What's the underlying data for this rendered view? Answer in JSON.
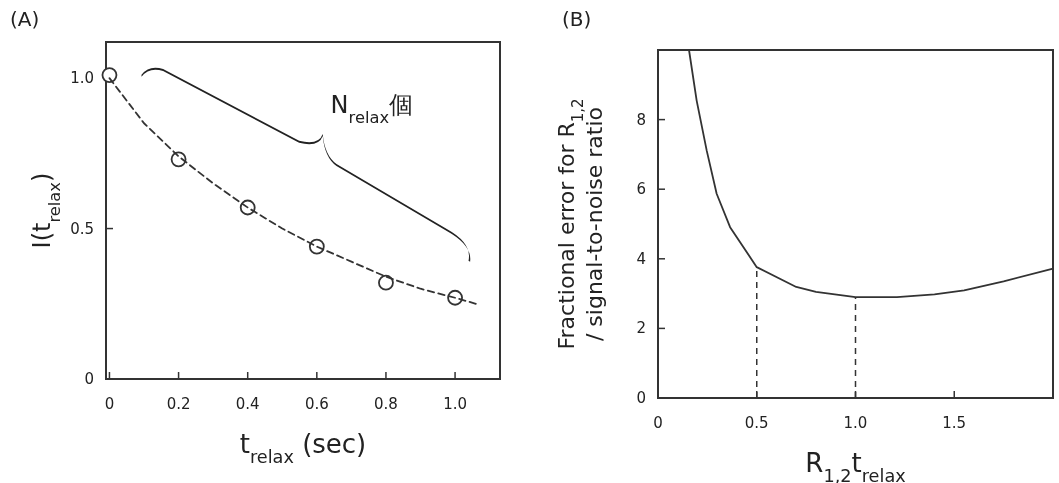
{
  "chart_data": [
    {
      "type": "scatter",
      "title": "(A)",
      "xlabel": "t$_{relax}$ (sec)",
      "ylabel": "I(t$_{relax}$)",
      "xlim": [
        -0.01,
        1.13
      ],
      "ylim": [
        0,
        1.12
      ],
      "xticks": [
        0,
        0.2,
        0.4,
        0.6,
        0.8,
        {
          "value": 1,
          "label": "1.0"
        }
      ],
      "yticks": [
        0,
        0.5,
        {
          "value": 1,
          "label": "1.0"
        }
      ],
      "annotations": [
        "N$_{relax}$個"
      ],
      "series": [
        {
          "marker": "circle",
          "color": "#333333",
          "x": [
            0,
            0.2,
            0.4,
            0.6,
            0.8,
            1.0
          ],
          "values": [
            1.01,
            0.73,
            0.57,
            0.44,
            0.32,
            0.27
          ]
        },
        {
          "type": "line",
          "line_style": "dashed",
          "color": "#333333",
          "x": [
            0,
            0.1,
            0.2,
            0.3,
            0.4,
            0.5,
            0.6,
            0.7,
            0.8,
            0.9,
            1.0,
            1.06
          ],
          "values": [
            1.0,
            0.85,
            0.74,
            0.65,
            0.57,
            0.5,
            0.44,
            0.39,
            0.34,
            0.3,
            0.27,
            0.25
          ]
        }
      ]
    },
    {
      "type": "line",
      "title": "(B)",
      "xlabel": "R$_{1,2}$t$_{relax}$",
      "ylabel": "Fractional error for R$_{1,2}$\n/ signal-to-noise ratio",
      "xlim": [
        0,
        2
      ],
      "ylim": [
        0,
        10
      ],
      "xticks": [
        0,
        0.5,
        {
          "value": 1,
          "label": "1.0"
        },
        1.5
      ],
      "yticks": [
        0,
        2,
        4,
        6,
        8
      ],
      "ref_lines": [
        {
          "axis": "x",
          "value": 0.5,
          "line_style": "dashed",
          "color": "#333333"
        },
        {
          "axis": "x",
          "value": 1.0,
          "line_style": "dashed",
          "color": "#333333"
        }
      ],
      "series": [
        {
          "color": "#333333",
          "x": [
            0.157,
            0.196,
            0.247,
            0.297,
            0.365,
            0.5,
            0.7,
            0.8,
            1.0,
            1.21,
            1.4,
            1.55,
            1.75,
            2.0
          ],
          "values": [
            10.0,
            8.54,
            7.1,
            5.87,
            4.91,
            3.76,
            3.19,
            3.05,
            2.9,
            2.9,
            2.98,
            3.09,
            3.35,
            3.72
          ]
        }
      ]
    }
  ]
}
